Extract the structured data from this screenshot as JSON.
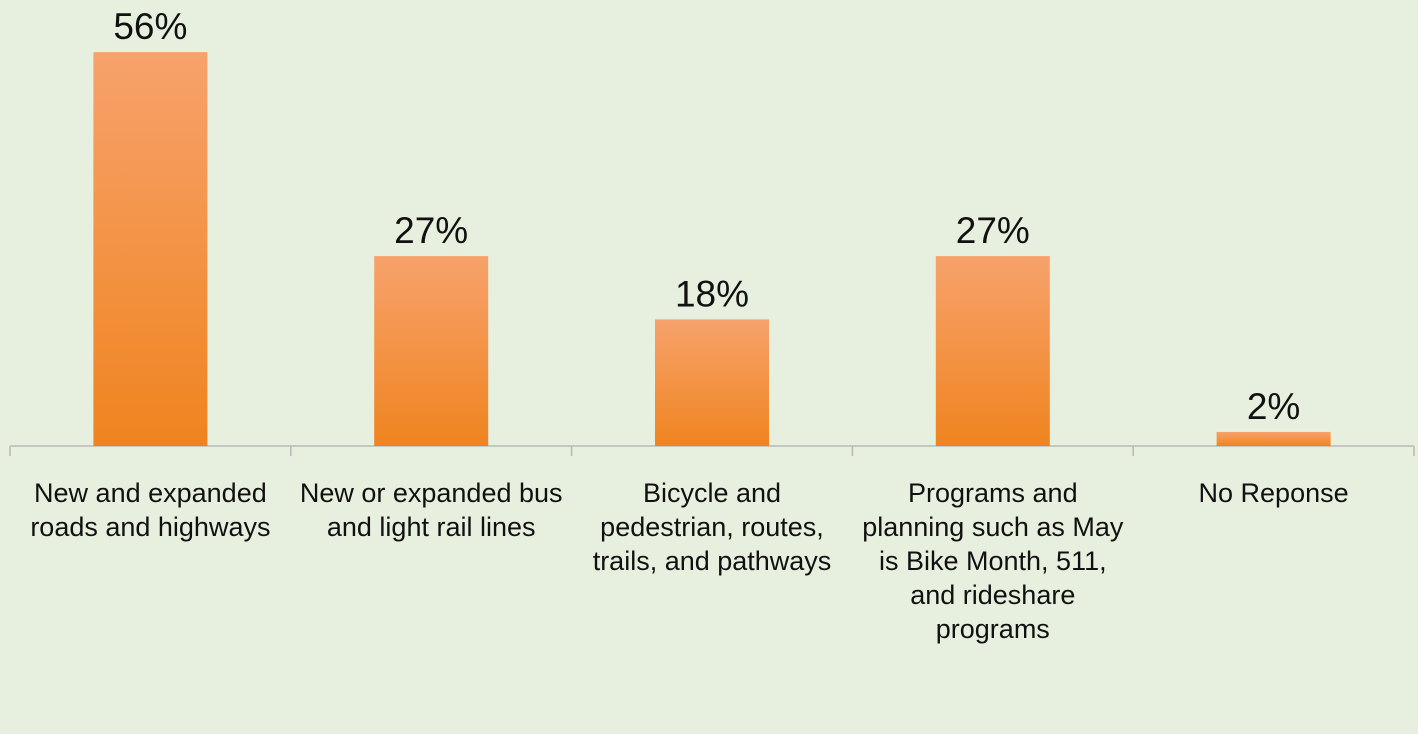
{
  "chart_data": {
    "type": "bar",
    "categories": [
      "New and expanded roads and highways",
      "New or expanded bus and light rail lines",
      "Bicycle and pedestrian, routes, trails, and pathways",
      "Programs and planning such as May is Bike Month, 511, and rideshare programs",
      "No Reponse"
    ],
    "values": [
      56,
      27,
      18,
      27,
      2
    ],
    "value_labels": [
      "56%",
      "27%",
      "18%",
      "27%",
      "2%"
    ],
    "color": "#f28a2e",
    "ylim": [
      0,
      60
    ]
  }
}
